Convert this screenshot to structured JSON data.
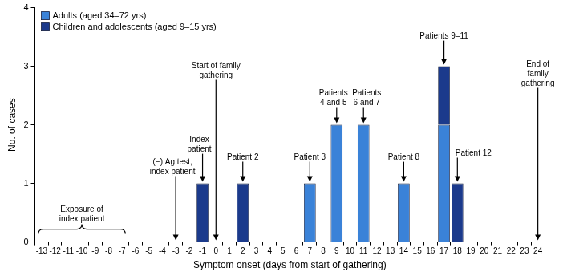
{
  "chart_data": {
    "type": "bar",
    "x_label": "Symptom onset (days from start of gathering)",
    "y_label": "No. of cases",
    "categories": [
      "-13",
      "-12",
      "-11",
      "-10",
      "-9",
      "-8",
      "-7",
      "-6",
      "-5",
      "-4",
      "-3",
      "-2",
      "-1",
      "0",
      "1",
      "2",
      "3",
      "4",
      "5",
      "6",
      "7",
      "8",
      "9",
      "10",
      "11",
      "12",
      "13",
      "14",
      "15",
      "16",
      "17",
      "18",
      "19",
      "20",
      "21",
      "22",
      "23",
      "24"
    ],
    "series": [
      {
        "name": "Adults (aged 34–72 yrs)",
        "color": "#3a82d8",
        "values": [
          0,
          0,
          0,
          0,
          0,
          0,
          0,
          0,
          0,
          0,
          0,
          0,
          0,
          0,
          0,
          0,
          0,
          0,
          0,
          0,
          1,
          0,
          2,
          0,
          2,
          0,
          0,
          1,
          0,
          0,
          2,
          0,
          0,
          0,
          0,
          0,
          0,
          0
        ]
      },
      {
        "name": "Children and adolescents (aged 9–15 yrs)",
        "color": "#1b3a8c",
        "values": [
          0,
          0,
          0,
          0,
          0,
          0,
          0,
          0,
          0,
          0,
          0,
          0,
          1,
          0,
          0,
          1,
          0,
          0,
          0,
          0,
          0,
          0,
          0,
          0,
          0,
          0,
          0,
          0,
          0,
          0,
          1,
          1,
          0,
          0,
          0,
          0,
          0,
          0
        ]
      }
    ],
    "stacked": true,
    "ylim": [
      0,
      4
    ],
    "yticks": [
      0,
      1,
      2,
      3,
      4
    ],
    "grid": false,
    "legend": "top-left",
    "annotations": [
      {
        "lines": [
          "(−) Ag test,",
          "index patient"
        ],
        "x": "-3"
      },
      {
        "lines": [
          "Index",
          "patient"
        ],
        "x": "-1"
      },
      {
        "lines": [
          "Start of family",
          "gathering"
        ],
        "x": "0"
      },
      {
        "lines": [
          "Patient 2"
        ],
        "x": "2"
      },
      {
        "lines": [
          "Patient 3"
        ],
        "x": "7"
      },
      {
        "lines": [
          "Patients",
          "4 and 5"
        ],
        "x": "9"
      },
      {
        "lines": [
          "Patients",
          "6 and 7"
        ],
        "x": "11"
      },
      {
        "lines": [
          "Patient 8"
        ],
        "x": "14"
      },
      {
        "lines": [
          "Patients 9–11"
        ],
        "x": "17"
      },
      {
        "lines": [
          "Patient 12"
        ],
        "x": "18"
      },
      {
        "lines": [
          "End of",
          "family",
          "gathering"
        ],
        "x": "24"
      },
      {
        "lines": [
          "Exposure of",
          "index patient"
        ],
        "x": "-13",
        "x_end": "-7"
      }
    ]
  }
}
